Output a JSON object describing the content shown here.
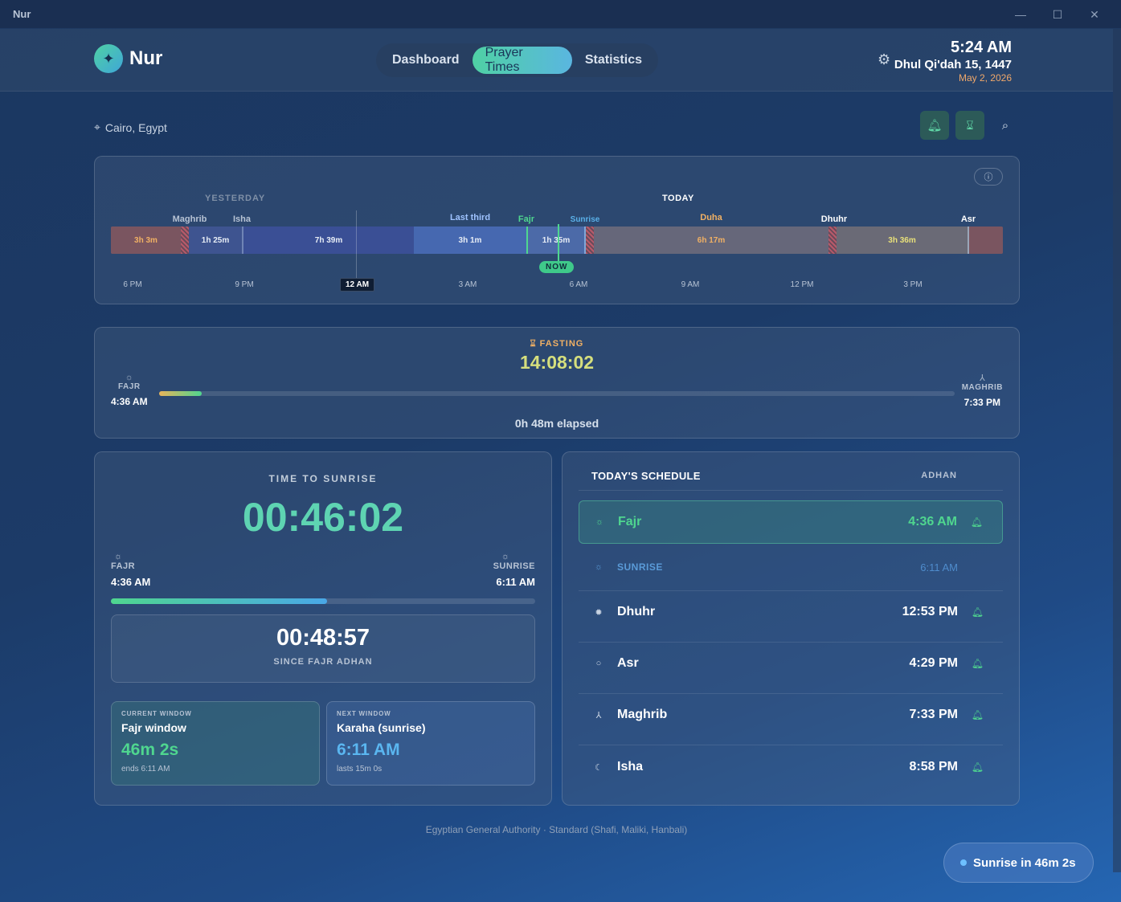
{
  "window": {
    "title": "Nur",
    "minimize": "—",
    "maximize": "☐",
    "close": "✕"
  },
  "header": {
    "app_name": "Nur",
    "logo_icon": "sparkle-icon",
    "tabs": [
      {
        "label": "Dashboard",
        "active": false
      },
      {
        "label": "Prayer Times",
        "active": true
      },
      {
        "label": "Statistics",
        "active": false
      }
    ],
    "time": "5:24 AM",
    "hijri": "Dhul Qi'dah 15, 1447",
    "gregorian": "May 2, 2026"
  },
  "location": "Cairo, Egypt",
  "timeline": {
    "yesterday_label": "YESTERDAY",
    "today_label": "TODAY",
    "prayer_labels": [
      "Maghrib",
      "Isha",
      "Last third",
      "Fajr",
      "Sunrise",
      "Duha",
      "Dhuhr",
      "Asr"
    ],
    "segments": [
      "3h 3m",
      "1h 25m",
      "7h 39m",
      "3h 1m",
      "1h 35m",
      "6h 17m",
      "3h 36m"
    ],
    "ticks": [
      "6 PM",
      "9 PM",
      "3 AM",
      "6 AM",
      "9 AM",
      "12 PM",
      "3 PM"
    ],
    "midnight": "12 AM",
    "now": "NOW"
  },
  "fasting": {
    "label": "FASTING",
    "value": "14:08:02",
    "start_name": "FAJR",
    "start_time": "4:36 AM",
    "end_name": "MAGHRIB",
    "end_time": "7:33 PM",
    "progress": 0.054,
    "elapsed": "0h 48m elapsed"
  },
  "countdown": {
    "caption": "TIME TO SUNRISE",
    "value": "00:46:02",
    "start_name": "FAJR",
    "start_time": "4:36 AM",
    "end_name": "SUNRISE",
    "end_time": "6:11 AM",
    "progress": 0.51,
    "since_value": "00:48:57",
    "since_label": "SINCE FAJR ADHAN",
    "current": {
      "k": "CURRENT WINDOW",
      "title": "Fajr window",
      "value": "46m 2s",
      "sub": "ends 6:11 AM"
    },
    "next": {
      "k": "NEXT WINDOW",
      "title": "Karaha (sunrise)",
      "value": "6:11 AM",
      "sub": "lasts 15m 0s"
    }
  },
  "schedule": {
    "title": "TODAY'S SCHEDULE",
    "adhan_label": "ADHAN",
    "rows": [
      {
        "name": "Fajr",
        "time": "4:36 AM",
        "icon": "sun-rising-icon"
      },
      {
        "name": "SUNRISE",
        "time": "6:11 AM",
        "icon": "sunrise-icon"
      },
      {
        "name": "Dhuhr",
        "time": "12:53 PM",
        "icon": "sun-icon"
      },
      {
        "name": "Asr",
        "time": "4:29 PM",
        "icon": "sun-afternoon-icon"
      },
      {
        "name": "Maghrib",
        "time": "7:33 PM",
        "icon": "sunset-icon"
      },
      {
        "name": "Isha",
        "time": "8:58 PM",
        "icon": "moon-icon"
      }
    ]
  },
  "footer": "Egyptian General Authority · Standard (Shafi, Maliki, Hanbali)",
  "toast": "Sunrise in 46m 2s",
  "colors": {
    "accent": "#4fd68f",
    "teal": "#5ed4b2",
    "blue": "#4aa8e8",
    "orange": "#f0b064"
  }
}
